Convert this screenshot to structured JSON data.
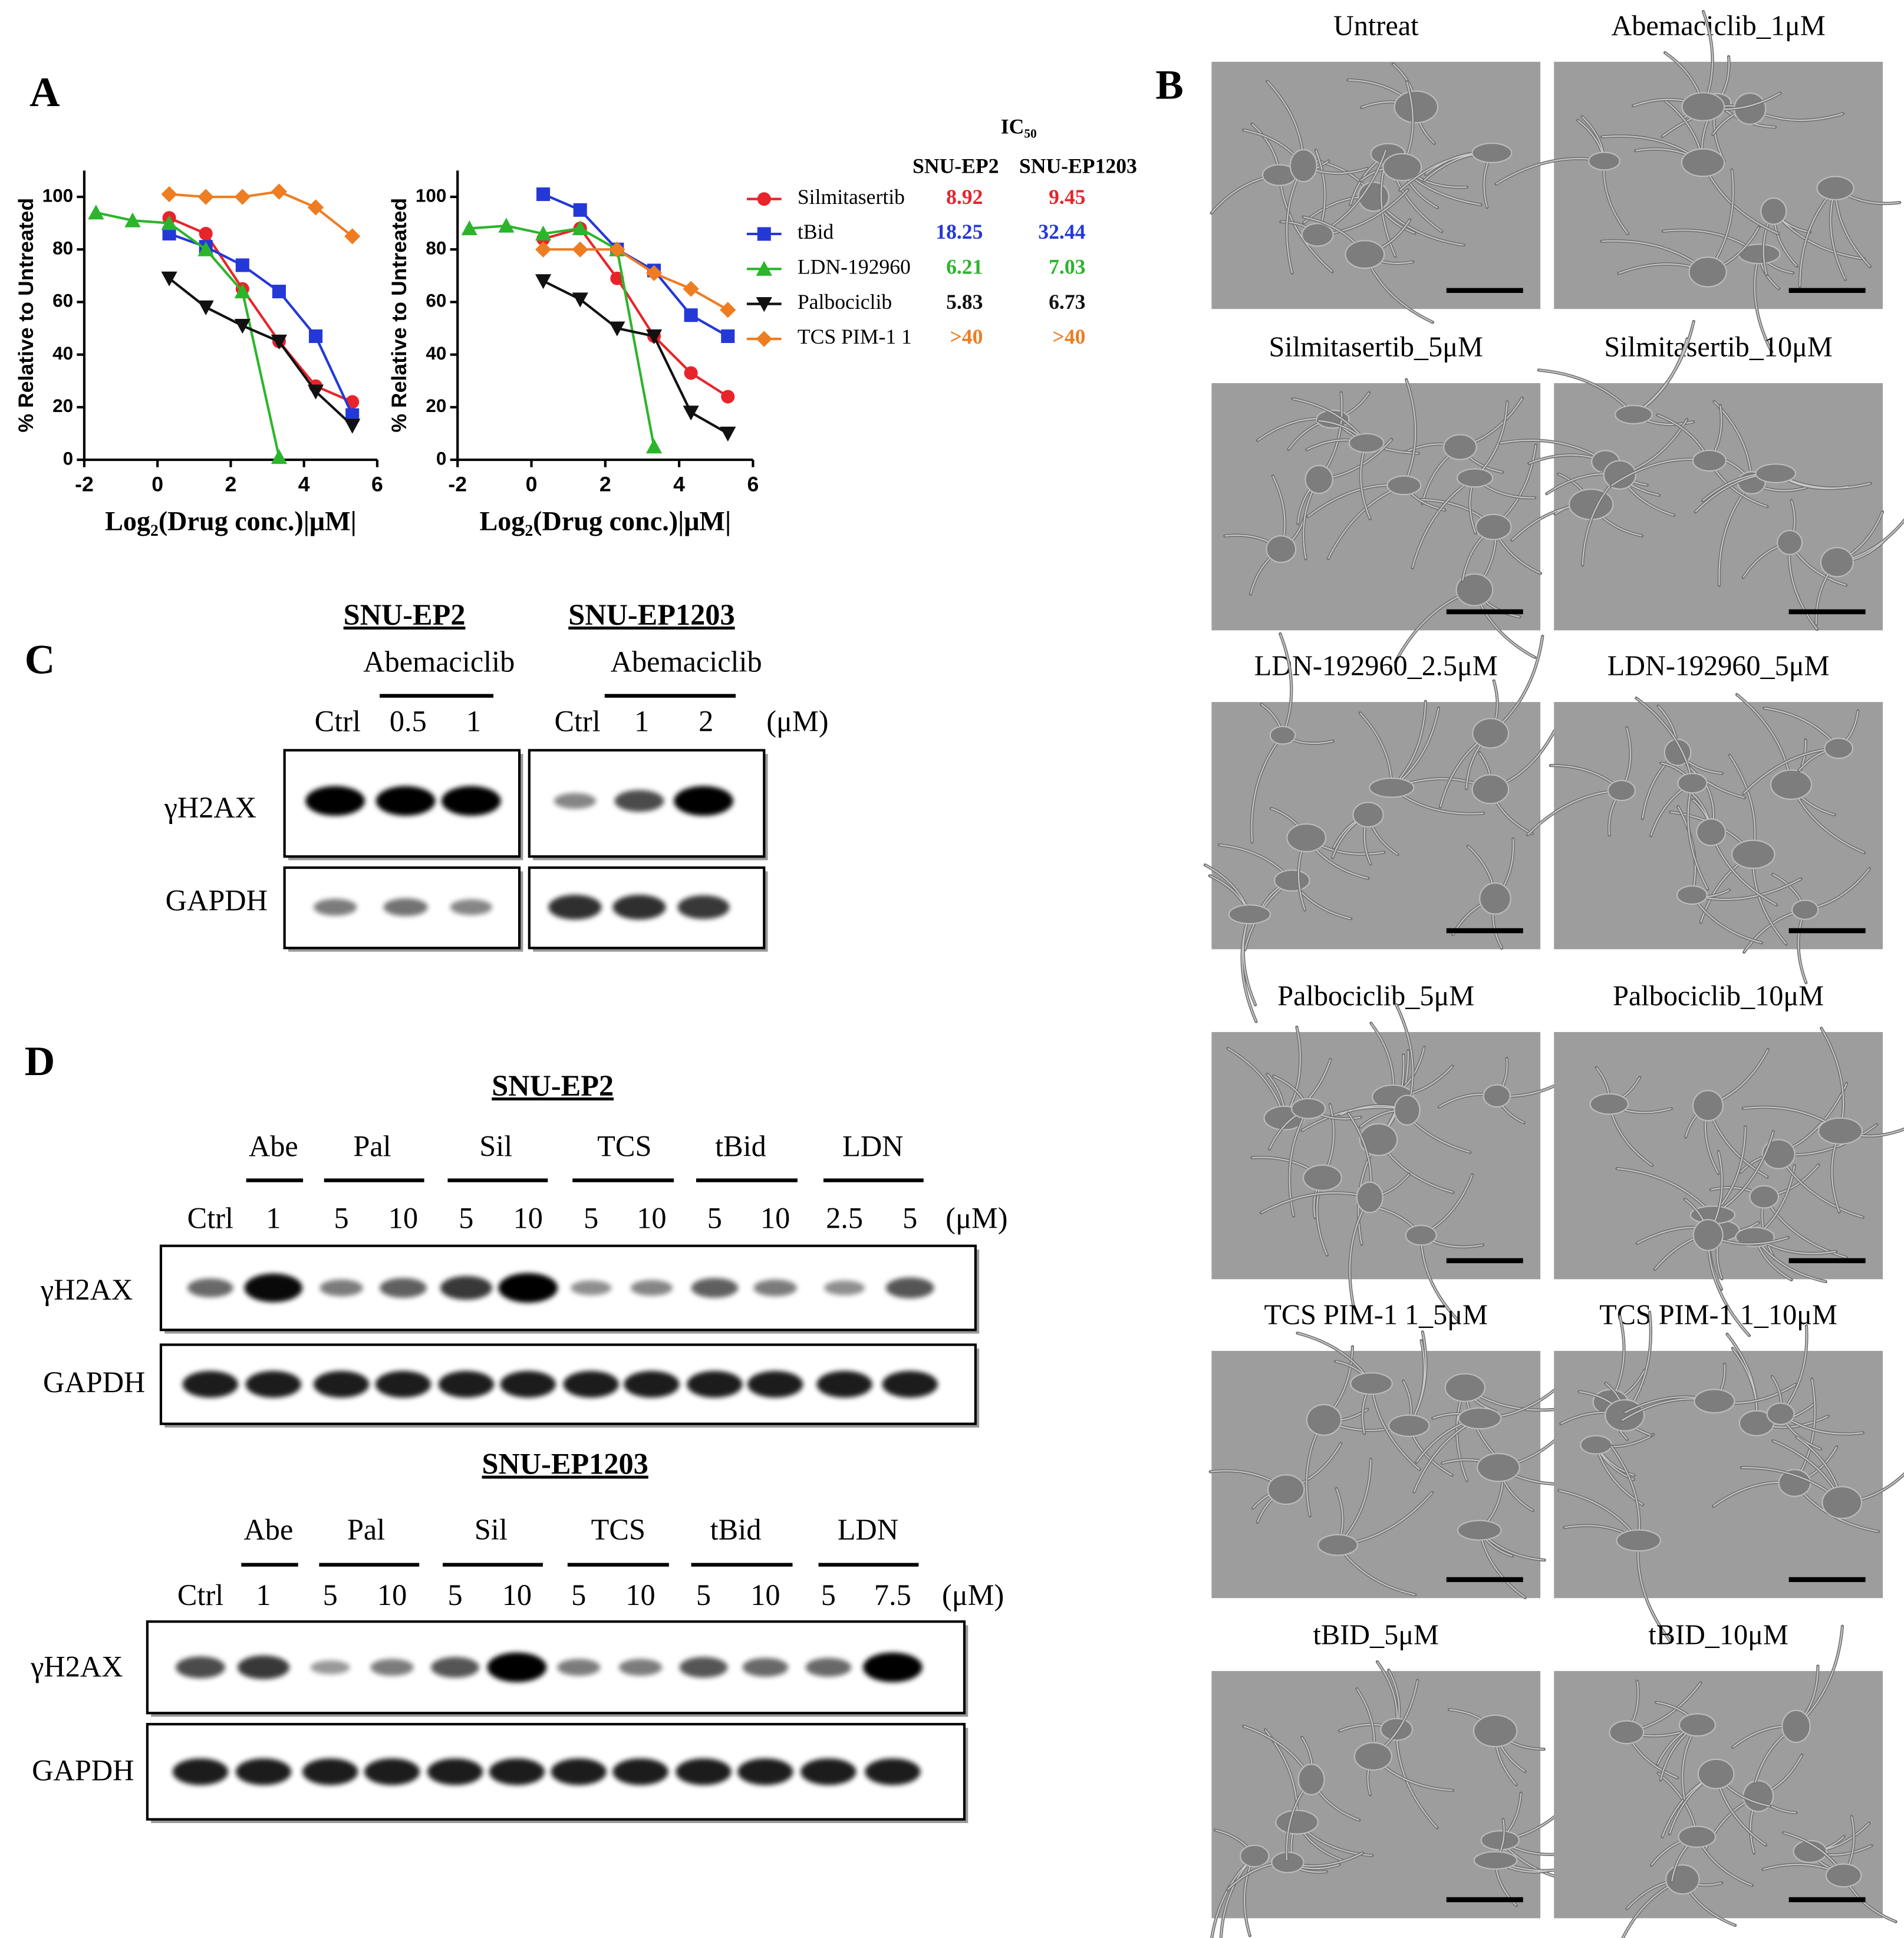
{
  "panel_labels": [
    "A",
    "B",
    "C",
    "D"
  ],
  "chart_data": [
    {
      "type": "line",
      "y_label": "% Relative to Untreated",
      "x_label": "Log₂(Drug conc.)|μM|",
      "xlim": [
        -2,
        6
      ],
      "xticks": [
        -2,
        0,
        2,
        4,
        6
      ],
      "ylim": [
        0,
        110
      ],
      "yticks": [
        0,
        20,
        40,
        60,
        80,
        100
      ],
      "series": [
        {
          "name": "Silmitasertib",
          "color": "#e8242b",
          "marker": "circle",
          "x": [
            0.32,
            1.32,
            2.32,
            3.32,
            4.32,
            5.32
          ],
          "values": [
            92,
            86,
            65,
            45,
            28,
            22
          ]
        },
        {
          "name": "tBid",
          "color": "#2438d8",
          "marker": "square",
          "x": [
            0.32,
            1.32,
            2.32,
            3.32,
            4.32,
            5.32
          ],
          "values": [
            86,
            81,
            74,
            64,
            47,
            17
          ]
        },
        {
          "name": "LDN-192960",
          "color": "#2bb52b",
          "marker": "triangle-up",
          "x": [
            -1.68,
            -0.68,
            0.32,
            1.32,
            2.32,
            3.32
          ],
          "values": [
            94,
            91,
            90,
            80,
            64,
            1
          ]
        },
        {
          "name": "Palbociclib",
          "color": "#111111",
          "marker": "triangle-down",
          "x": [
            0.32,
            1.32,
            2.32,
            3.32,
            4.32,
            5.32
          ],
          "values": [
            69,
            58,
            51,
            45,
            26,
            13
          ]
        },
        {
          "name": "TCS PIM-1 1",
          "color": "#ee7d22",
          "marker": "diamond",
          "x": [
            0.32,
            1.32,
            2.32,
            3.32,
            4.32,
            5.32
          ],
          "values": [
            101,
            100,
            100,
            102,
            96,
            85
          ]
        }
      ]
    },
    {
      "type": "line",
      "y_label": "% Relative to Untreated",
      "x_label": "Log₂(Drug conc.)|μM|",
      "xlim": [
        -2,
        6
      ],
      "xticks": [
        -2,
        0,
        2,
        4,
        6
      ],
      "ylim": [
        0,
        110
      ],
      "yticks": [
        0,
        20,
        40,
        60,
        80,
        100
      ],
      "series": [
        {
          "color": "#e8242b",
          "marker": "circle",
          "x": [
            0.32,
            1.32,
            2.32,
            3.32,
            4.32,
            5.32
          ],
          "values": [
            84,
            88,
            69,
            47,
            33,
            24
          ]
        },
        {
          "color": "#2438d8",
          "marker": "square",
          "x": [
            0.32,
            1.32,
            2.32,
            3.32,
            4.32,
            5.32
          ],
          "values": [
            101,
            95,
            80,
            72,
            55,
            47
          ]
        },
        {
          "color": "#2bb52b",
          "marker": "triangle-up",
          "x": [
            -1.68,
            -0.68,
            0.32,
            1.32,
            2.32,
            3.32
          ],
          "values": [
            88,
            89,
            86,
            88,
            80,
            5
          ]
        },
        {
          "color": "#111111",
          "marker": "triangle-down",
          "x": [
            0.32,
            1.32,
            2.32,
            3.32,
            4.32,
            5.32
          ],
          "values": [
            68,
            61,
            50,
            47,
            18,
            10
          ]
        },
        {
          "color": "#ee7d22",
          "marker": "diamond",
          "x": [
            0.32,
            1.32,
            2.32,
            3.32,
            4.32,
            5.32
          ],
          "values": [
            80,
            80,
            80,
            71,
            65,
            57
          ]
        }
      ]
    }
  ],
  "ic50_table": {
    "title": "IC₅₀",
    "columns": [
      "SNU-EP2",
      "SNU-EP1203"
    ],
    "rows": [
      [
        8.92,
        9.45
      ],
      [
        18.25,
        32.44
      ],
      [
        6.21,
        7.03
      ],
      [
        5.83,
        6.73
      ],
      [
        ">40",
        ">40"
      ]
    ]
  },
  "panel_b": {
    "images": [
      "Untreat",
      "Abemaciclib_1μM",
      "Silmitasertib_5μM",
      "Silmitasertib_10μM",
      "LDN-192960_2.5μM",
      "LDN-192960_5μM",
      "Palbociclib_5μM",
      "Palbociclib_10μM",
      "TCS PIM-1 1_5μM",
      "TCS PIM-1 1_10μM",
      "tBID_5μM",
      "tBID_10μM"
    ]
  },
  "panel_c": {
    "blots": [
      {
        "cell_line": "SNU-EP2",
        "treatment": "Abemaciclib",
        "lanes": [
          "Ctrl",
          "0.5",
          "1"
        ]
      },
      {
        "cell_line": "SNU-EP1203",
        "treatment": "Abemaciclib",
        "lanes": [
          "Ctrl",
          "1",
          "2"
        ],
        "unit": "(μM)"
      }
    ],
    "rows": [
      "γH2AX",
      "GAPDH"
    ]
  },
  "panel_d": {
    "blots": [
      {
        "cell_line": "SNU-EP2",
        "groups": [
          "Abe",
          "Pal",
          "Sil",
          "TCS",
          "tBid",
          "LDN"
        ],
        "lanes": [
          "Ctrl",
          "1",
          "5",
          "10",
          "5",
          "10",
          "5",
          "10",
          "5",
          "10",
          "2.5",
          "5"
        ],
        "unit": "(μM)",
        "rows": [
          "γH2AX",
          "GAPDH"
        ]
      },
      {
        "cell_line": "SNU-EP1203",
        "groups": [
          "Abe",
          "Pal",
          "Sil",
          "TCS",
          "tBid",
          "LDN"
        ],
        "lanes": [
          "Ctrl",
          "1",
          "5",
          "10",
          "5",
          "10",
          "5",
          "10",
          "5",
          "10",
          "5",
          "7.5"
        ],
        "unit": "(μM)",
        "rows": [
          "γH2AX",
          "GAPDH"
        ]
      }
    ]
  }
}
